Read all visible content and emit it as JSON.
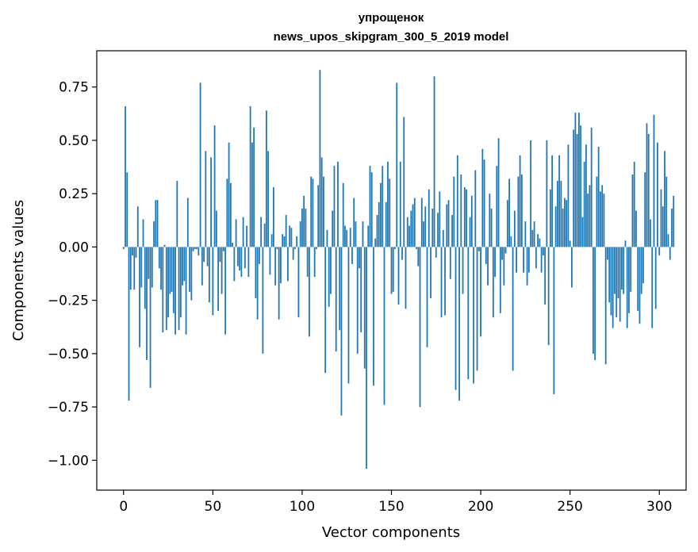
{
  "chart_data": {
    "type": "bar",
    "title_line1": "упрощенок",
    "title_line2": "news_upos_skipgram_300_5_2019 model",
    "xlabel": "Vector components",
    "ylabel": "Components values",
    "xlim": [
      -15,
      315
    ],
    "ylim": [
      -1.14,
      0.92
    ],
    "x_ticks": [
      0,
      50,
      100,
      150,
      200,
      250,
      300
    ],
    "x_tick_labels": [
      "0",
      "50",
      "100",
      "150",
      "200",
      "250",
      "300"
    ],
    "y_ticks": [
      -1.0,
      -0.75,
      -0.5,
      -0.25,
      0.0,
      0.25,
      0.5,
      0.75
    ],
    "y_tick_labels": [
      "−1.00",
      "−0.75",
      "−0.50",
      "−0.25",
      "0.00",
      "0.25",
      "0.50",
      "0.75"
    ],
    "grid": false,
    "bar_color": "#1f77b4",
    "values": [
      -0.01,
      0.66,
      0.35,
      -0.72,
      -0.2,
      -0.04,
      -0.2,
      -0.05,
      0.19,
      -0.47,
      -0.19,
      0.13,
      -0.29,
      -0.53,
      -0.15,
      -0.66,
      -0.19,
      0.12,
      0.22,
      0.22,
      -0.1,
      -0.2,
      -0.4,
      0.01,
      -0.39,
      -0.33,
      -0.22,
      -0.21,
      -0.31,
      -0.41,
      0.31,
      -0.39,
      -0.33,
      -0.18,
      -0.16,
      -0.41,
      0.23,
      -0.21,
      -0.25,
      -0.02,
      -0.01,
      -0.01,
      -0.04,
      0.77,
      -0.18,
      -0.07,
      0.45,
      -0.09,
      -0.26,
      0.42,
      -0.32,
      0.57,
      0.17,
      -0.3,
      -0.07,
      -0.22,
      -0.02,
      -0.41,
      0.32,
      0.49,
      0.3,
      0.02,
      -0.16,
      0.13,
      -0.09,
      -0.11,
      -0.14,
      0.14,
      -0.1,
      0.1,
      -0.14,
      0.66,
      0.49,
      0.56,
      -0.24,
      -0.34,
      -0.08,
      0.14,
      -0.5,
      0.11,
      0.64,
      0.45,
      -0.13,
      0.06,
      0.28,
      -0.18,
      -0.01,
      -0.34,
      -0.17,
      0.06,
      0.05,
      0.15,
      -0.16,
      0.1,
      0.09,
      -0.06,
      -0.01,
      0.05,
      -0.33,
      0.12,
      0.18,
      0.24,
      0.18,
      -0.14,
      -0.42,
      0.33,
      0.32,
      -0.14,
      -0.01,
      0.29,
      0.83,
      0.42,
      0.33,
      -0.59,
      0.08,
      -0.28,
      -0.22,
      0.17,
      0.38,
      -0.49,
      0.4,
      -0.39,
      -0.79,
      0.3,
      0.1,
      0.08,
      -0.64,
      0.09,
      -0.08,
      0.23,
      0.12,
      -0.5,
      -0.1,
      -0.4,
      0.12,
      -0.57,
      -1.04,
      0.1,
      0.38,
      0.35,
      -0.65,
      0.04,
      0.15,
      0.21,
      0.3,
      0.38,
      -0.74,
      0.21,
      0.4,
      0.32,
      -0.22,
      -0.21,
      -0.01,
      0.77,
      -0.27,
      0.4,
      -0.06,
      0.61,
      -0.29,
      0.14,
      0.1,
      0.17,
      0.2,
      0.23,
      -0.01,
      -0.09,
      -0.75,
      0.23,
      0.12,
      0.19,
      -0.47,
      0.27,
      -0.24,
      0.18,
      0.8,
      -0.05,
      0.16,
      0.26,
      -0.33,
      0.08,
      -0.32,
      0.2,
      0.22,
      -0.15,
      0.15,
      0.33,
      -0.67,
      0.43,
      -0.72,
      0.34,
      -0.22,
      0.28,
      0.27,
      -0.62,
      0.14,
      0.24,
      -0.64,
      0.36,
      -0.58,
      -0.02,
      -0.42,
      0.46,
      0.41,
      -0.08,
      -0.18,
      0.25,
      0.18,
      -0.33,
      -0.14,
      0.38,
      0.51,
      -0.31,
      -0.06,
      -0.18,
      -0.03,
      0.22,
      0.32,
      0.05,
      -0.58,
      0.17,
      -0.12,
      0.33,
      0.43,
      0.34,
      -0.12,
      0.12,
      -0.18,
      -0.12,
      0.5,
      0.08,
      0.12,
      -0.1,
      0.06,
      0.04,
      -0.12,
      -0.04,
      -0.27,
      0.5,
      -0.46,
      0.27,
      0.43,
      -0.69,
      0.19,
      0.31,
      0.43,
      0.31,
      0.18,
      0.23,
      0.22,
      0.48,
      0.03,
      -0.19,
      0.55,
      0.63,
      0.53,
      0.63,
      0.57,
      0.14,
      0.4,
      0.48,
      0.25,
      0.29,
      0.56,
      -0.5,
      -0.53,
      0.33,
      0.47,
      0.26,
      0.29,
      0.25,
      -0.55,
      -0.06,
      -0.26,
      -0.32,
      -0.38,
      -0.22,
      -0.33,
      -0.24,
      -0.35,
      -0.2,
      -0.22,
      0.03,
      -0.38,
      -0.31,
      -0.21,
      0.34,
      0.4,
      0.17,
      -0.3,
      -0.36,
      -0.22,
      -0.17,
      0.35,
      0.58,
      0.53,
      0.13,
      -0.38,
      0.62,
      -0.29,
      0.49,
      -0.04,
      0.27,
      0.19,
      0.45,
      0.33,
      0.06,
      -0.06,
      0.18,
      0.24
    ]
  }
}
